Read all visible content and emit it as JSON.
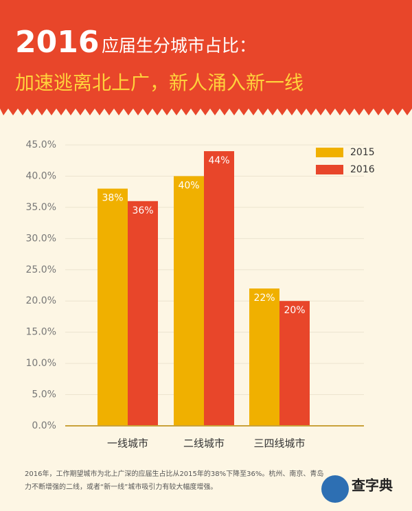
{
  "header": {
    "title_year": "2016",
    "title_rest": "应届生分城市占比：",
    "subtitle": "加速逃离北上广，新人涌入新一线"
  },
  "chart_data": {
    "type": "bar",
    "categories": [
      "一线城市",
      "二线城市",
      "三四线城市"
    ],
    "series": [
      {
        "name": "2015",
        "color": "#f0b000",
        "values": [
          38,
          40,
          22
        ],
        "value_labels": [
          "38%",
          "40%",
          "22%"
        ]
      },
      {
        "name": "2016",
        "color": "#e8462a",
        "values": [
          36,
          44,
          20
        ],
        "value_labels": [
          "36%",
          "44%",
          "20%"
        ]
      }
    ],
    "ylim": [
      0,
      45
    ],
    "yticks": [
      {
        "value": 0,
        "label": "0.0%"
      },
      {
        "value": 5,
        "label": "5.0%"
      },
      {
        "value": 10,
        "label": "10.0%"
      },
      {
        "value": 15,
        "label": "15.0%"
      },
      {
        "value": 20,
        "label": "20.0%"
      },
      {
        "value": 25,
        "label": "25.0%"
      },
      {
        "value": 30,
        "label": "30.0%"
      },
      {
        "value": 35,
        "label": "35.0%"
      },
      {
        "value": 40,
        "label": "40.0%"
      },
      {
        "value": 45,
        "label": "45.0%"
      }
    ],
    "grid": true,
    "legend": "top-right"
  },
  "footnote": {
    "line1": "2016年，工作期望城市为北上广深的应届生占比从2015年的38%下降至36%。杭州、南京、青岛",
    "line2": "力不断增强的二线，或者“新一线”城市吸引力有较大幅度增强。"
  },
  "logo": {
    "text": "查字典"
  }
}
